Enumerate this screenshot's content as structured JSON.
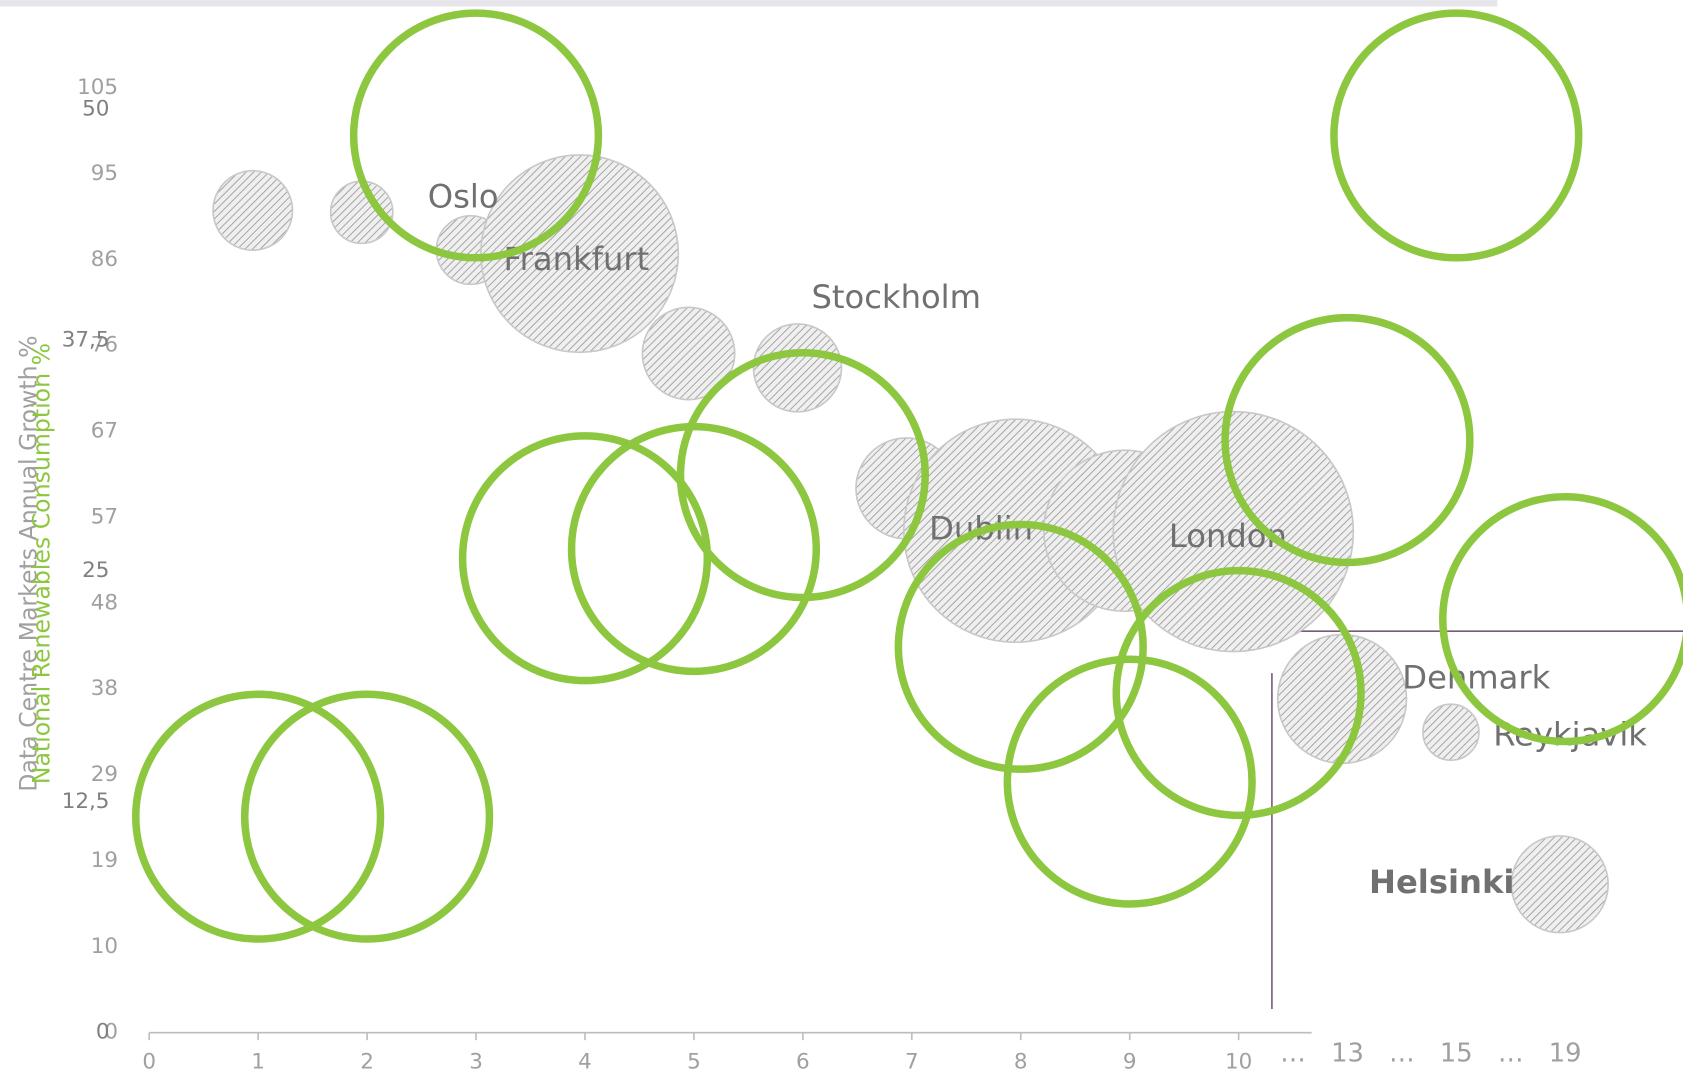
{
  "chart_data": {
    "type": "bubble",
    "y_label": "Data Centre Markets Annual Growth %",
    "y2_label": "National Renewables Consumption %",
    "categories": [
      "0",
      "1",
      "2",
      "3",
      "4",
      "5",
      "6",
      "7",
      "8",
      "9",
      "10",
      "…",
      "13",
      "…",
      "15",
      "…",
      "19"
    ],
    "ylim": [
      0,
      105
    ],
    "yticks": [
      0,
      {
        "value": 9.545,
        "label": "10"
      },
      {
        "value": 19.09,
        "label": "19"
      },
      {
        "value": 28.64,
        "label": "29"
      },
      {
        "value": 38.18,
        "label": "38"
      },
      {
        "value": 47.73,
        "label": "48"
      },
      {
        "value": 57.27,
        "label": "57"
      },
      {
        "value": 66.82,
        "label": "67"
      },
      {
        "value": 76.36,
        "label": "76"
      },
      {
        "value": 85.91,
        "label": "86"
      },
      {
        "value": 95.45,
        "label": "95"
      },
      105
    ],
    "y2lim": [
      0,
      50
    ],
    "y2ticks": [
      0,
      {
        "value": 12.5,
        "label": "12,5"
      },
      25,
      {
        "value": 37.5,
        "label": "37,5"
      },
      50
    ],
    "series": [
      {
        "color": "#c8c8c8",
        "values": [
          null,
          91.4,
          91.2,
          87.0,
          86.6,
          75.5,
          73.9,
          60.5,
          55.8,
          55.8,
          55.7,
          null,
          37.1,
          null,
          33.4,
          null,
          16.5
        ],
        "sizes": [
          null,
          13.7,
          8.4,
          10.2,
          84.6,
          18.5,
          16.8,
          22.1,
          108,
          56.3,
          125,
          null,
          36,
          null,
          6.8,
          null,
          20.3
        ],
        "labels": [
          null,
          null,
          null,
          "Oslo",
          "Frankfurt",
          null,
          "Stockholm",
          null,
          "Dublin",
          null,
          "London",
          null,
          "Denmark",
          null,
          "Reykjavik",
          null,
          "Helsinki"
        ]
      },
      {
        "color": "#8dc63f",
        "axis": "y2",
        "values": [
          null,
          11.7,
          11.7,
          48.6,
          25.7,
          26.2,
          30.2,
          null,
          20.9,
          13.6,
          18.4,
          null,
          32.1,
          null,
          48.6,
          null,
          22.4
        ]
      }
    ]
  }
}
